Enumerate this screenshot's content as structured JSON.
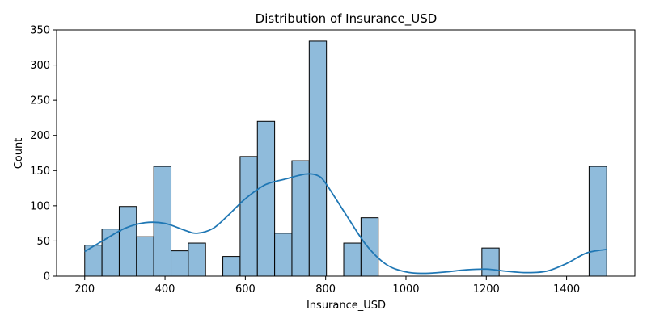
{
  "chart_data": {
    "type": "bar",
    "title": "Distribution of Insurance_USD",
    "xlabel": "Insurance_USD",
    "ylabel": "Count",
    "xlim": [
      130,
      1570
    ],
    "ylim": [
      0,
      350
    ],
    "xticks": [
      200,
      400,
      600,
      800,
      1000,
      1200,
      1400
    ],
    "yticks": [
      0,
      50,
      100,
      150,
      200,
      250,
      300,
      350
    ],
    "grid": false,
    "bar_color": "#8fbbdb",
    "bar_edge_color": "#000000",
    "kde_color": "#1f77b4",
    "bins": [
      {
        "x0": 200,
        "x1": 243,
        "count": 44
      },
      {
        "x0": 243,
        "x1": 286,
        "count": 67
      },
      {
        "x0": 286,
        "x1": 329,
        "count": 99
      },
      {
        "x0": 329,
        "x1": 372,
        "count": 56
      },
      {
        "x0": 372,
        "x1": 415,
        "count": 156
      },
      {
        "x0": 415,
        "x1": 458,
        "count": 36
      },
      {
        "x0": 458,
        "x1": 501,
        "count": 47
      },
      {
        "x0": 544,
        "x1": 587,
        "count": 28
      },
      {
        "x0": 587,
        "x1": 630,
        "count": 170
      },
      {
        "x0": 630,
        "x1": 673,
        "count": 220
      },
      {
        "x0": 673,
        "x1": 716,
        "count": 61
      },
      {
        "x0": 716,
        "x1": 759,
        "count": 164
      },
      {
        "x0": 759,
        "x1": 802,
        "count": 334
      },
      {
        "x0": 845,
        "x1": 888,
        "count": 47
      },
      {
        "x0": 888,
        "x1": 931,
        "count": 83
      },
      {
        "x0": 1189,
        "x1": 1232,
        "count": 40
      },
      {
        "x0": 1456,
        "x1": 1500,
        "count": 156
      }
    ],
    "kde": {
      "x": [
        200,
        250,
        300,
        350,
        400,
        450,
        480,
        520,
        560,
        600,
        650,
        700,
        750,
        780,
        800,
        850,
        900,
        950,
        1000,
        1050,
        1100,
        1150,
        1200,
        1250,
        1300,
        1350,
        1400,
        1450,
        1500
      ],
      "y": [
        35,
        52,
        68,
        76,
        75,
        65,
        61,
        68,
        88,
        110,
        130,
        138,
        145,
        143,
        132,
        88,
        45,
        17,
        6,
        4,
        6,
        9,
        10,
        7,
        5,
        7,
        18,
        33,
        38
      ]
    }
  }
}
